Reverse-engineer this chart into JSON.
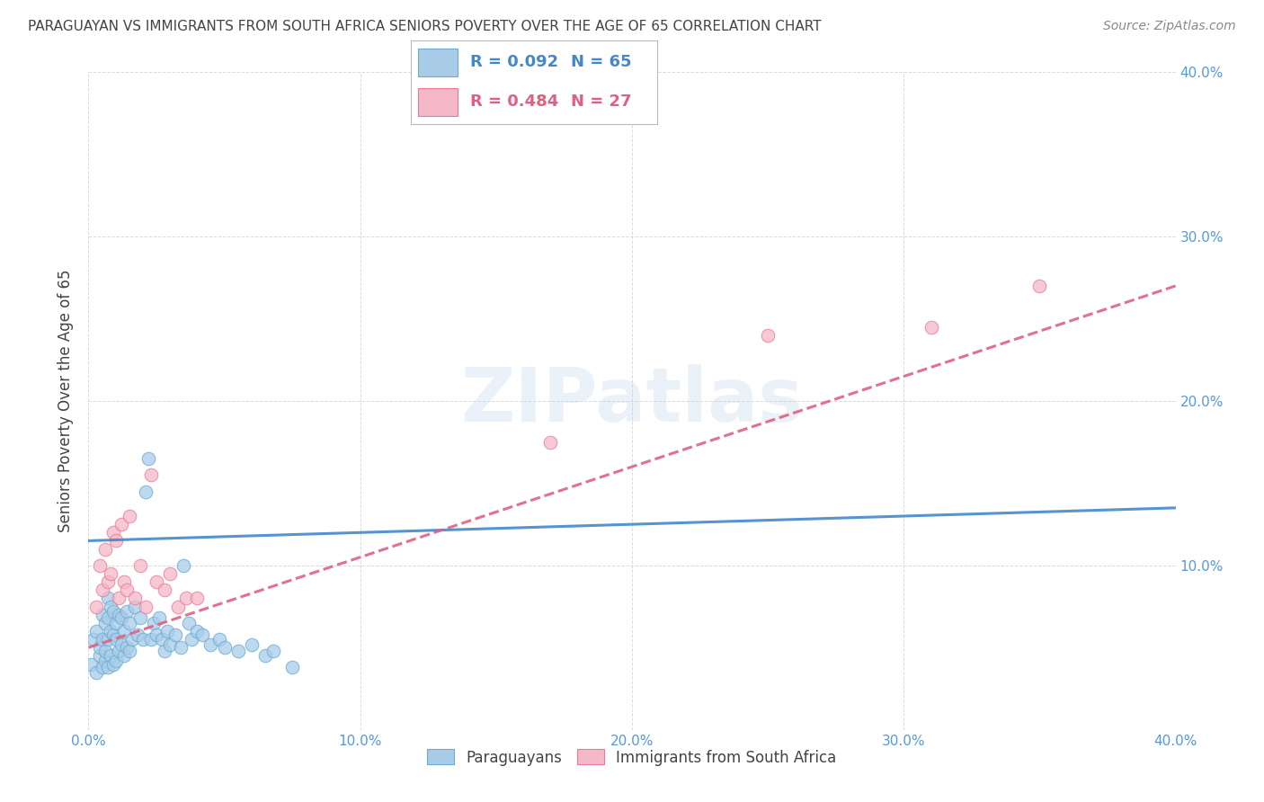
{
  "title": "PARAGUAYAN VS IMMIGRANTS FROM SOUTH AFRICA SENIORS POVERTY OVER THE AGE OF 65 CORRELATION CHART",
  "source": "Source: ZipAtlas.com",
  "ylabel": "Seniors Poverty Over the Age of 65",
  "xlim": [
    0.0,
    0.4
  ],
  "ylim": [
    0.0,
    0.4
  ],
  "xticks": [
    0.0,
    0.1,
    0.2,
    0.3,
    0.4
  ],
  "yticks": [
    0.0,
    0.1,
    0.2,
    0.3,
    0.4
  ],
  "xticklabels": [
    "0.0%",
    "10.0%",
    "20.0%",
    "30.0%",
    "40.0%"
  ],
  "right_ytick_vals": [
    0.1,
    0.2,
    0.3,
    0.4
  ],
  "right_yticklabels": [
    "10.0%",
    "20.0%",
    "30.0%",
    "40.0%"
  ],
  "watermark_text": "ZIPatlas",
  "legend_r1": "R = 0.092",
  "legend_n1": "N = 65",
  "legend_r2": "R = 0.484",
  "legend_n2": "N = 27",
  "blue_scatter_color": "#a8cce8",
  "blue_scatter_edge": "#6aaad4",
  "pink_scatter_color": "#f4b8c8",
  "pink_scatter_edge": "#e87a9a",
  "blue_line_color": "#4488cc",
  "pink_line_color": "#e06080",
  "axis_tick_color": "#5599dd",
  "grid_color": "#cccccc",
  "title_color": "#444444",
  "source_color": "#888888",
  "ylabel_color": "#444444",
  "paraguayan_x": [
    0.001,
    0.002,
    0.003,
    0.003,
    0.004,
    0.004,
    0.005,
    0.005,
    0.005,
    0.006,
    0.006,
    0.006,
    0.007,
    0.007,
    0.007,
    0.007,
    0.008,
    0.008,
    0.008,
    0.009,
    0.009,
    0.009,
    0.01,
    0.01,
    0.01,
    0.011,
    0.011,
    0.012,
    0.012,
    0.013,
    0.013,
    0.014,
    0.014,
    0.015,
    0.015,
    0.016,
    0.017,
    0.018,
    0.019,
    0.02,
    0.021,
    0.022,
    0.023,
    0.024,
    0.025,
    0.026,
    0.027,
    0.028,
    0.029,
    0.03,
    0.032,
    0.034,
    0.035,
    0.037,
    0.038,
    0.04,
    0.042,
    0.045,
    0.048,
    0.05,
    0.055,
    0.06,
    0.065,
    0.068,
    0.075
  ],
  "paraguayan_y": [
    0.04,
    0.055,
    0.035,
    0.06,
    0.045,
    0.05,
    0.038,
    0.055,
    0.07,
    0.042,
    0.048,
    0.065,
    0.038,
    0.055,
    0.068,
    0.08,
    0.045,
    0.06,
    0.075,
    0.04,
    0.058,
    0.072,
    0.042,
    0.055,
    0.065,
    0.048,
    0.07,
    0.052,
    0.068,
    0.045,
    0.06,
    0.05,
    0.072,
    0.048,
    0.065,
    0.055,
    0.075,
    0.058,
    0.068,
    0.055,
    0.145,
    0.165,
    0.055,
    0.065,
    0.058,
    0.068,
    0.055,
    0.048,
    0.06,
    0.052,
    0.058,
    0.05,
    0.1,
    0.065,
    0.055,
    0.06,
    0.058,
    0.052,
    0.055,
    0.05,
    0.048,
    0.052,
    0.045,
    0.048,
    0.038
  ],
  "sa_x": [
    0.003,
    0.004,
    0.005,
    0.006,
    0.007,
    0.008,
    0.009,
    0.01,
    0.011,
    0.012,
    0.013,
    0.014,
    0.015,
    0.017,
    0.019,
    0.021,
    0.023,
    0.025,
    0.028,
    0.03,
    0.033,
    0.036,
    0.04,
    0.17,
    0.25,
    0.31,
    0.35
  ],
  "sa_y": [
    0.075,
    0.1,
    0.085,
    0.11,
    0.09,
    0.095,
    0.12,
    0.115,
    0.08,
    0.125,
    0.09,
    0.085,
    0.13,
    0.08,
    0.1,
    0.075,
    0.155,
    0.09,
    0.085,
    0.095,
    0.075,
    0.08,
    0.08,
    0.175,
    0.24,
    0.245,
    0.27
  ],
  "blue_trend_x": [
    0.0,
    0.4
  ],
  "blue_trend_y": [
    0.115,
    0.135
  ],
  "pink_trend_x": [
    0.0,
    0.4
  ],
  "pink_trend_y": [
    0.05,
    0.27
  ]
}
